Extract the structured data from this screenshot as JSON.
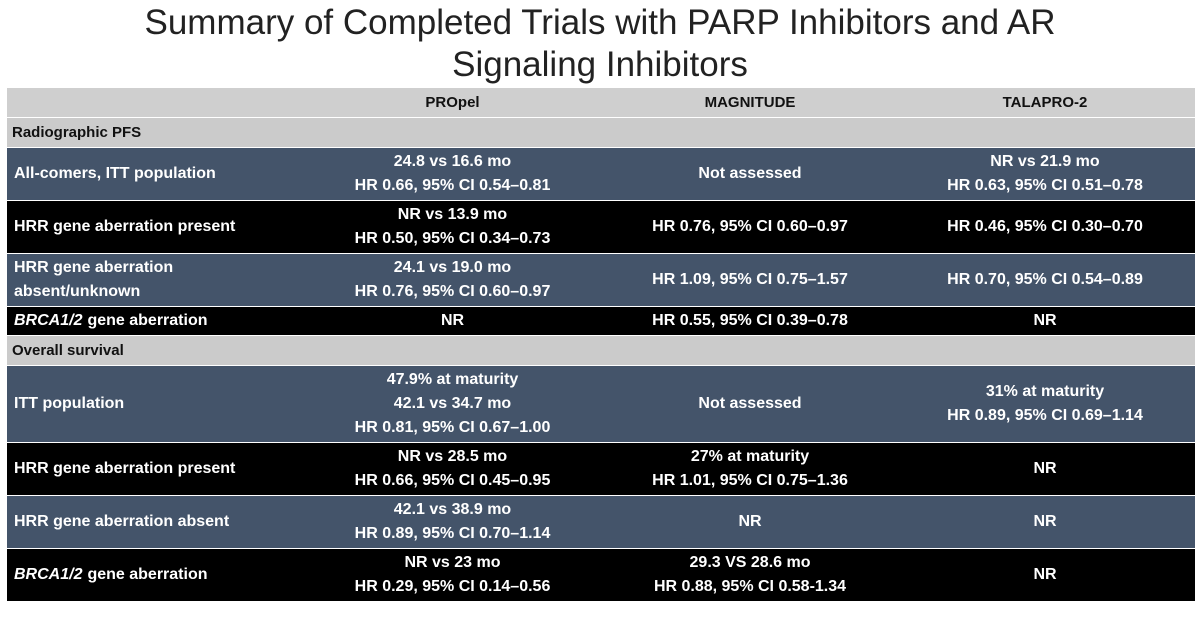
{
  "title": [
    "Summary of Completed Trials with PARP Inhibitors and AR",
    "Signaling Inhibitors"
  ],
  "table": {
    "header": [
      "PROpel",
      "MAGNITUDE",
      "TALAPRO-2"
    ],
    "rows": [
      {
        "section": "Radiographic PFS"
      },
      {
        "label": [
          "All-comers, ITT population"
        ],
        "cells": [
          [
            "24.8 vs 16.6 mo",
            "HR 0.66, 95% CI 0.54–0.81"
          ],
          [
            "Not assessed"
          ],
          [
            "NR vs 21.9 mo",
            "HR 0.63, 95% CI 0.51–0.78"
          ]
        ]
      },
      {
        "label": [
          "HRR gene aberration present"
        ],
        "cells": [
          [
            "NR vs 13.9 mo",
            "HR 0.50, 95% CI 0.34–0.73"
          ],
          [
            "HR 0.76, 95% CI 0.60–0.97"
          ],
          [
            "HR 0.46, 95% CI 0.30–0.70"
          ]
        ]
      },
      {
        "label": [
          "HRR gene aberration",
          "absent/unknown"
        ],
        "cells": [
          [
            "24.1 vs 19.0 mo",
            "HR 0.76, 95% CI 0.60–0.97"
          ],
          [
            "HR 1.09, 95% CI 0.75–1.57"
          ],
          [
            "HR 0.70, 95% CI 0.54–0.89"
          ]
        ]
      },
      {
        "label_italic": "BRCA1/2",
        "label": [
          "gene aberration"
        ],
        "cells": [
          [
            "NR"
          ],
          [
            "HR 0.55, 95% CI 0.39–0.78"
          ],
          [
            "NR"
          ]
        ]
      },
      {
        "section": "Overall survival"
      },
      {
        "label": [
          "ITT population"
        ],
        "cells": [
          [
            "47.9% at maturity",
            "42.1 vs 34.7 mo",
            "HR 0.81, 95% CI 0.67–1.00"
          ],
          [
            "Not assessed"
          ],
          [
            "31% at maturity",
            "HR 0.89, 95% CI 0.69–1.14"
          ]
        ]
      },
      {
        "label": [
          "HRR gene aberration present"
        ],
        "cells": [
          [
            "NR vs 28.5 mo",
            "HR 0.66, 95% CI 0.45–0.95"
          ],
          [
            "27% at maturity",
            "HR 1.01, 95% CI 0.75–1.36"
          ],
          [
            "NR"
          ]
        ]
      },
      {
        "label": [
          "HRR gene aberration absent"
        ],
        "cells": [
          [
            "42.1 vs 38.9 mo",
            "HR 0.89, 95% CI 0.70–1.14"
          ],
          [
            "NR"
          ],
          [
            "NR"
          ]
        ]
      },
      {
        "label_italic": "BRCA1/2",
        "label": [
          "gene aberration"
        ],
        "cells": [
          [
            "NR vs 23 mo",
            "HR 0.29, 95% CI 0.14–0.56"
          ],
          [
            "29.3 VS 28.6 mo",
            "HR 0.88, 95% CI 0.58-1.34"
          ],
          [
            "NR"
          ]
        ]
      }
    ]
  }
}
